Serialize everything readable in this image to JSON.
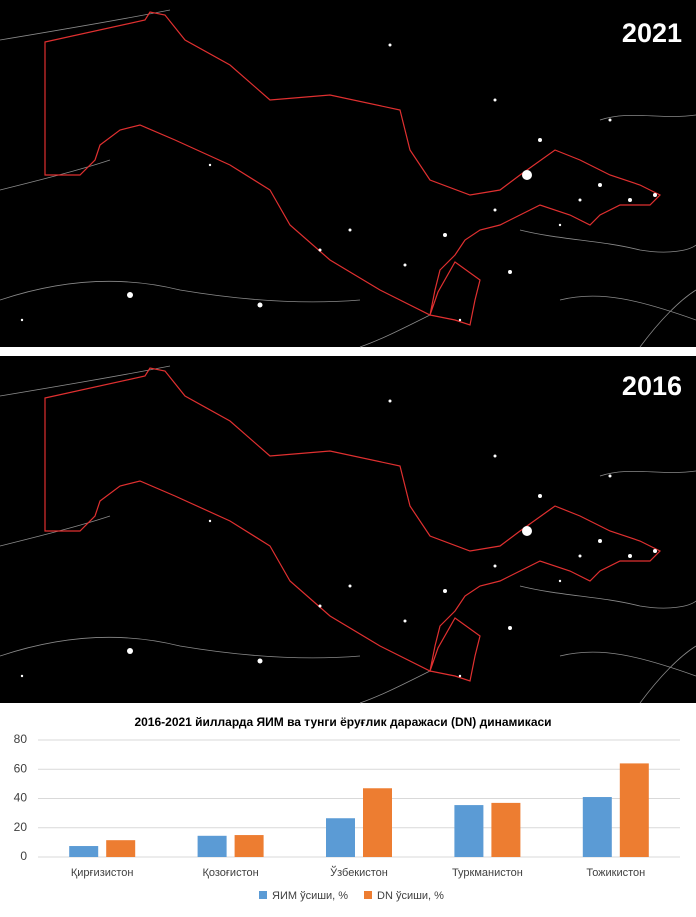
{
  "maps": {
    "labels": [
      "2021",
      "2016"
    ]
  },
  "chart_data": {
    "type": "bar",
    "title": "2016-2021 йилларда ЯИМ ва тунги ёруғлик даражаси (DN) динамикаси",
    "categories": [
      "Қирғизистон",
      "Қозоғистон",
      "Ўзбекистон",
      "Туркманистон",
      "Тожикистон"
    ],
    "series": [
      {
        "name": "ЯИМ ўсиши, %",
        "color": "#5b9bd5",
        "values": [
          7.5,
          14.5,
          26.5,
          35.5,
          41
        ]
      },
      {
        "name": "DN ўсиши, %",
        "color": "#ed7d31",
        "values": [
          11.5,
          15,
          47,
          37,
          64
        ]
      }
    ],
    "ylim": [
      0,
      80
    ],
    "yticks": [
      0,
      20,
      40,
      60,
      80
    ],
    "grid": true,
    "legend": "bottom"
  }
}
